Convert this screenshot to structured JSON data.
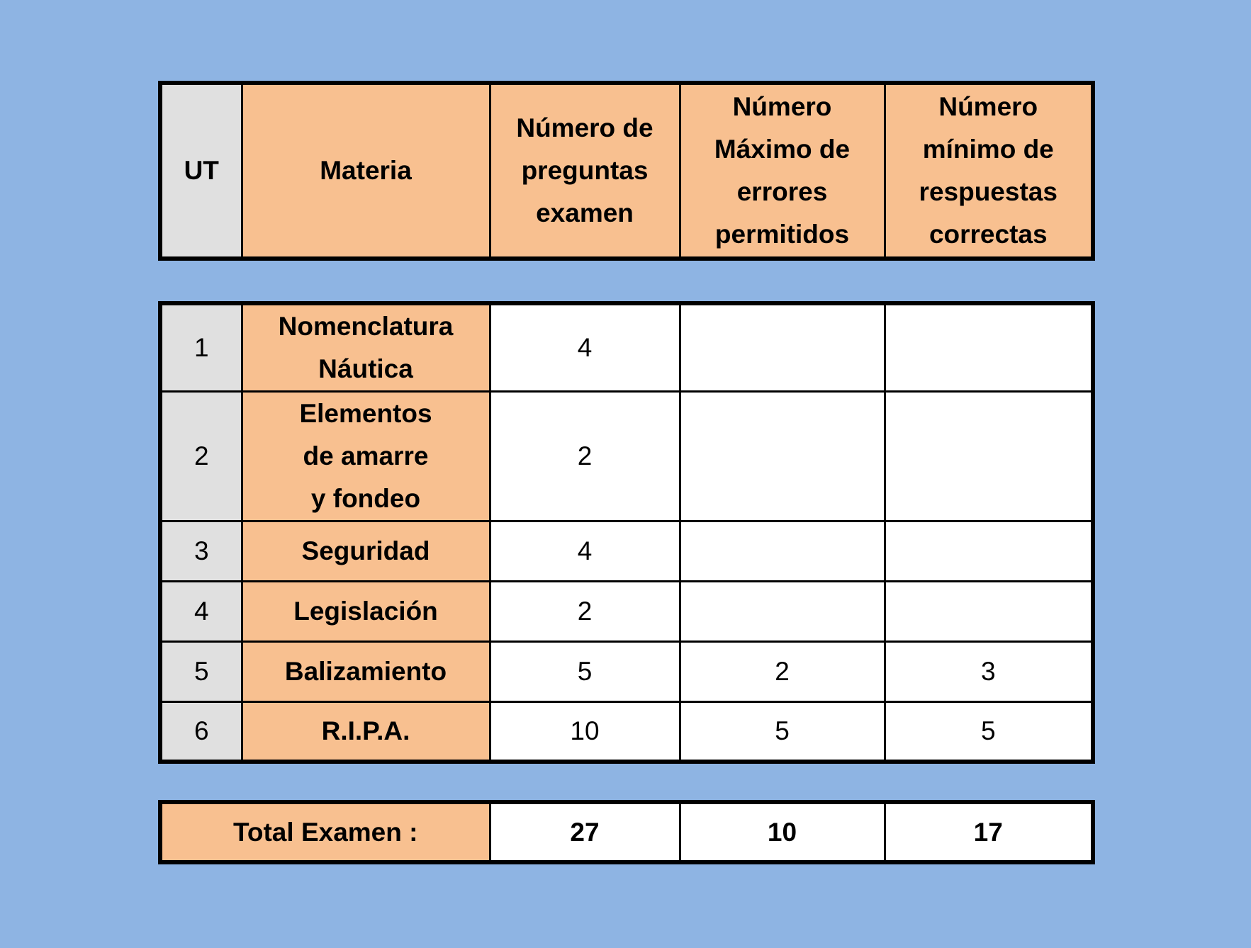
{
  "colors": {
    "background": "#8eb4e3",
    "header_fill": "#f8c090",
    "ut_fill": "#e0e0e0",
    "cell_fill": "#ffffff",
    "border": "#000000"
  },
  "header": {
    "ut": "UT",
    "materia": "Materia",
    "preguntas": "Número de\npreguntas\nexamen",
    "errores": "Número\nMáximo de\nerrores\npermitidos",
    "correctas": "Número\nmínimo de\nrespuestas\ncorrectas"
  },
  "rows": [
    {
      "ut": "1",
      "materia": "Nomenclatura\nNáutica",
      "preguntas": "4",
      "errores": "",
      "correctas": ""
    },
    {
      "ut": "2",
      "materia": "Elementos\nde amarre\ny fondeo",
      "preguntas": "2",
      "errores": "",
      "correctas": ""
    },
    {
      "ut": "3",
      "materia": "Seguridad",
      "preguntas": "4",
      "errores": "",
      "correctas": ""
    },
    {
      "ut": "4",
      "materia": "Legislación",
      "preguntas": "2",
      "errores": "",
      "correctas": ""
    },
    {
      "ut": "5",
      "materia": "Balizamiento",
      "preguntas": "5",
      "errores": "2",
      "correctas": "3"
    },
    {
      "ut": "6",
      "materia": "R.I.P.A.",
      "preguntas": "10",
      "errores": "5",
      "correctas": "5"
    }
  ],
  "total": {
    "label": "Total Examen :",
    "preguntas": "27",
    "errores": "10",
    "correctas": "17"
  }
}
